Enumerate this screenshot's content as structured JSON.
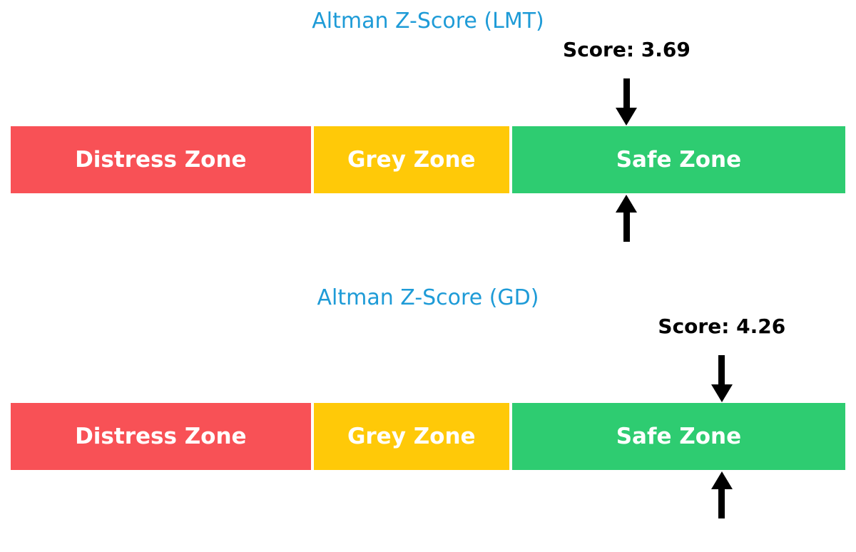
{
  "page": {
    "background": "#FFFFFF",
    "accent_colors": {
      "title_blue": "#1E9BD7",
      "distress_red": "#F85156",
      "grey_yellow": "#FFC908",
      "safe_green": "#2ECC71",
      "arrow_black": "#000000",
      "zone_label_white": "#FFFFFF"
    }
  },
  "chart_data": [
    {
      "type": "bar",
      "subtype": "zone-indicator",
      "title": "Altman Z-Score (LMT)",
      "score": 3.69,
      "score_label": "Score: 3.69",
      "axis_range": [
        0,
        5
      ],
      "marker": "double-black-arrows-at-score",
      "legend_position": "none",
      "zones": [
        {
          "label": "Distress Zone",
          "range": [
            0,
            1.81
          ],
          "color": "#F85156"
        },
        {
          "label": "Grey Zone",
          "range": [
            1.81,
            2.99
          ],
          "color": "#FFC908"
        },
        {
          "label": "Safe Zone",
          "range": [
            2.99,
            5.0
          ],
          "color": "#2ECC71"
        }
      ]
    },
    {
      "type": "bar",
      "subtype": "zone-indicator",
      "title": "Altman Z-Score (GD)",
      "score": 4.26,
      "score_label": "Score: 4.26",
      "axis_range": [
        0,
        5
      ],
      "marker": "double-black-arrows-at-score",
      "legend_position": "none",
      "zones": [
        {
          "label": "Distress Zone",
          "range": [
            0,
            1.81
          ],
          "color": "#F85156"
        },
        {
          "label": "Grey Zone",
          "range": [
            1.81,
            2.99
          ],
          "color": "#FFC908"
        },
        {
          "label": "Safe Zone",
          "range": [
            2.99,
            5.0
          ],
          "color": "#2ECC71"
        }
      ]
    }
  ]
}
